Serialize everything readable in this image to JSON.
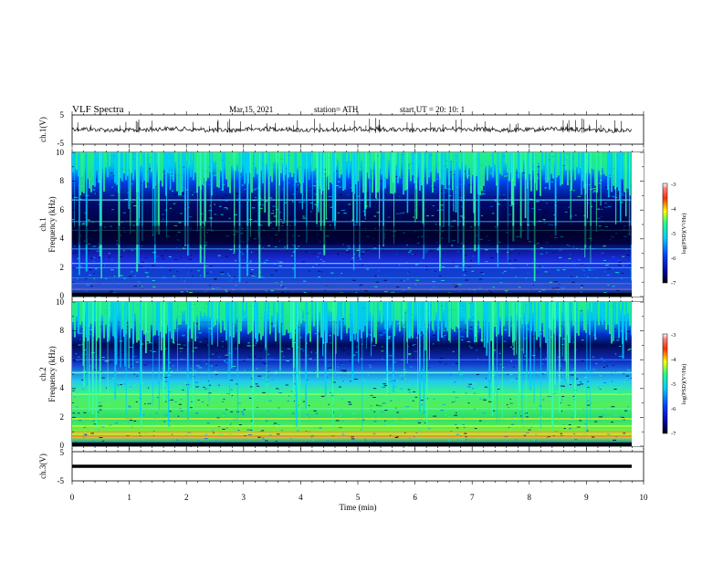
{
  "header": {
    "title": "VLF  Spectra",
    "date": "Mar.15, 2021",
    "station": "station= ATH",
    "start": "start  UT  =   20: 10: 1"
  },
  "chart_data": [
    {
      "type": "line",
      "name": "ch1-waveform",
      "ylabel": "ch.1(V)",
      "ylim": [
        -5,
        5
      ],
      "yticks": [
        "5",
        "-5"
      ],
      "xlim": [
        0,
        10
      ]
    },
    {
      "type": "heatmap",
      "name": "ch1-spectrogram",
      "ylabel": "ch.1\nFrequency  (kHz)",
      "ylabel_line1": "ch.1",
      "ylabel_line2": "Frequency  (kHz)",
      "ylim": [
        0,
        10
      ],
      "yticks": [
        "0",
        "2",
        "4",
        "6",
        "8",
        "10"
      ],
      "colorbar": {
        "label": "log(PSD)(V²/Hz)",
        "range": [
          -7,
          -3
        ],
        "ticks": [
          "-3",
          "-4",
          "-5",
          "-6",
          "-7"
        ]
      }
    },
    {
      "type": "heatmap",
      "name": "ch2-spectrogram",
      "ylabel": "ch.2\nFrequency  (kHz)",
      "ylabel_line1": "ch.2",
      "ylabel_line2": "Frequency  (kHz)",
      "ylim": [
        0,
        10
      ],
      "yticks": [
        "0",
        "2",
        "4",
        "6",
        "8",
        "10"
      ],
      "colorbar": {
        "label": "log(PSD)(V²/Hz)",
        "range": [
          -7,
          -3
        ],
        "ticks": [
          "-3",
          "-4",
          "-5",
          "-6",
          "-7"
        ]
      }
    },
    {
      "type": "line",
      "name": "ch3-waveform",
      "ylabel": "ch.3(V)",
      "ylim": [
        -5,
        5
      ],
      "yticks": [
        "5",
        "-5"
      ],
      "xlim": [
        0,
        10
      ],
      "xlabel": "Time  (min)",
      "xticks": [
        "0",
        "1",
        "2",
        "3",
        "4",
        "5",
        "6",
        "7",
        "8",
        "9",
        "10"
      ]
    }
  ],
  "colors": {
    "colormap": [
      "#000000",
      "#00009a",
      "#0044ff",
      "#00ccff",
      "#22ff88",
      "#ffff00",
      "#ff4400",
      "#ff0000",
      "#ffdddd"
    ]
  }
}
